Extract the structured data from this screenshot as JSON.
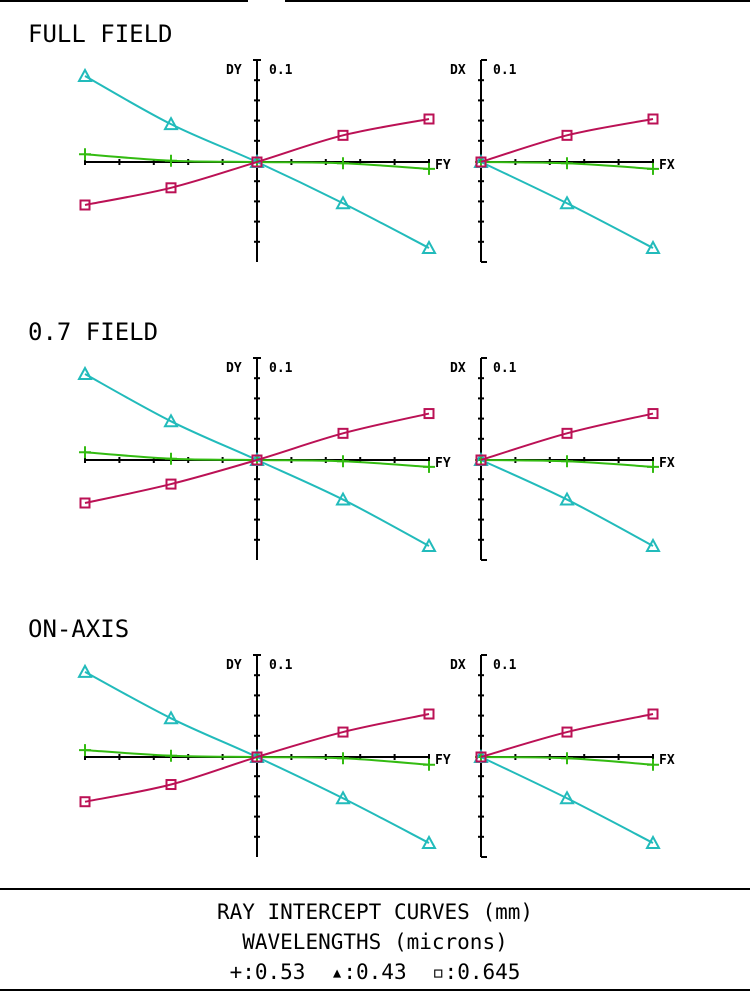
{
  "chart_data": {
    "type": "line",
    "plots": [
      {
        "field": "FULL FIELD",
        "tangential": {
          "ylabel": "DY",
          "scale": "0.1",
          "xlabel": "FY",
          "x": [
            -1,
            -0.5,
            0,
            0.5,
            1
          ],
          "series": [
            {
              "marker": "+",
              "wavelength": "0.53",
              "y": [
                0.009,
                0.0015,
                0,
                -0.0015,
                -0.008
              ]
            },
            {
              "marker": "triangle",
              "wavelength": "0.43",
              "y": [
                0.1,
                0.044,
                0,
                -0.048,
                -0.1
              ]
            },
            {
              "marker": "square",
              "wavelength": "0.645",
              "y": [
                -0.05,
                -0.03,
                0,
                0.031,
                0.05
              ]
            }
          ]
        },
        "sagittal": {
          "ylabel": "DX",
          "scale": "0.1",
          "xlabel": "FX",
          "x": [
            0,
            0.5,
            1
          ],
          "series": [
            {
              "marker": "+",
              "wavelength": "0.53",
              "y": [
                0,
                -0.0015,
                -0.008
              ]
            },
            {
              "marker": "triangle",
              "wavelength": "0.43",
              "y": [
                0,
                -0.048,
                -0.1
              ]
            },
            {
              "marker": "square",
              "wavelength": "0.645",
              "y": [
                0,
                0.031,
                0.05
              ]
            }
          ]
        }
      },
      {
        "field": "0.7 FIELD",
        "tangential": {
          "ylabel": "DY",
          "scale": "0.1",
          "xlabel": "FY",
          "x": [
            -1,
            -0.5,
            0,
            0.5,
            1
          ],
          "series": [
            {
              "marker": "+",
              "wavelength": "0.53",
              "y": [
                0.009,
                0.0015,
                0,
                -0.0015,
                -0.008
              ]
            },
            {
              "marker": "triangle",
              "wavelength": "0.43",
              "y": [
                0.1,
                0.045,
                0,
                -0.046,
                -0.1
              ]
            },
            {
              "marker": "square",
              "wavelength": "0.645",
              "y": [
                -0.05,
                -0.028,
                0,
                0.031,
                0.054
              ]
            }
          ]
        },
        "sagittal": {
          "ylabel": "DX",
          "scale": "0.1",
          "xlabel": "FX",
          "x": [
            0,
            0.5,
            1
          ],
          "series": [
            {
              "marker": "+",
              "wavelength": "0.53",
              "y": [
                0,
                -0.0015,
                -0.008
              ]
            },
            {
              "marker": "triangle",
              "wavelength": "0.43",
              "y": [
                0,
                -0.046,
                -0.1
              ]
            },
            {
              "marker": "square",
              "wavelength": "0.645",
              "y": [
                0,
                0.031,
                0.054
              ]
            }
          ]
        }
      },
      {
        "field": "ON-AXIS",
        "tangential": {
          "ylabel": "DY",
          "scale": "0.1",
          "xlabel": "FY",
          "x": [
            -1,
            -0.5,
            0,
            0.5,
            1
          ],
          "series": [
            {
              "marker": "+",
              "wavelength": "0.53",
              "y": [
                0.008,
                0.0015,
                0,
                -0.0015,
                -0.009
              ]
            },
            {
              "marker": "triangle",
              "wavelength": "0.43",
              "y": [
                0.099,
                0.045,
                0,
                -0.048,
                -0.1
              ]
            },
            {
              "marker": "square",
              "wavelength": "0.645",
              "y": [
                -0.052,
                -0.032,
                0,
                0.029,
                0.05
              ]
            }
          ]
        },
        "sagittal": {
          "ylabel": "DX",
          "scale": "0.1",
          "xlabel": "FX",
          "x": [
            0,
            0.5,
            1
          ],
          "series": [
            {
              "marker": "+",
              "wavelength": "0.53",
              "y": [
                0,
                -0.0015,
                -0.009
              ]
            },
            {
              "marker": "triangle",
              "wavelength": "0.43",
              "y": [
                0,
                -0.048,
                -0.1
              ]
            },
            {
              "marker": "square",
              "wavelength": "0.645",
              "y": [
                0,
                0.029,
                0.05
              ]
            }
          ]
        }
      }
    ],
    "ylim": [
      -0.1,
      0.1
    ],
    "colors": {
      "+": "#33bb11",
      "triangle": "#22bbbb",
      "square": "#bb1155",
      "axis": "#000000"
    }
  },
  "footer": {
    "title": "RAY INTERCEPT CURVES (mm)",
    "subtitle": "WAVELENGTHS (microns)",
    "legend": [
      {
        "marker": "+",
        "text": "+:0.53"
      },
      {
        "marker": "triangle",
        "text": "▴:0.43"
      },
      {
        "marker": "square",
        "text": "▫:0.645"
      }
    ]
  }
}
